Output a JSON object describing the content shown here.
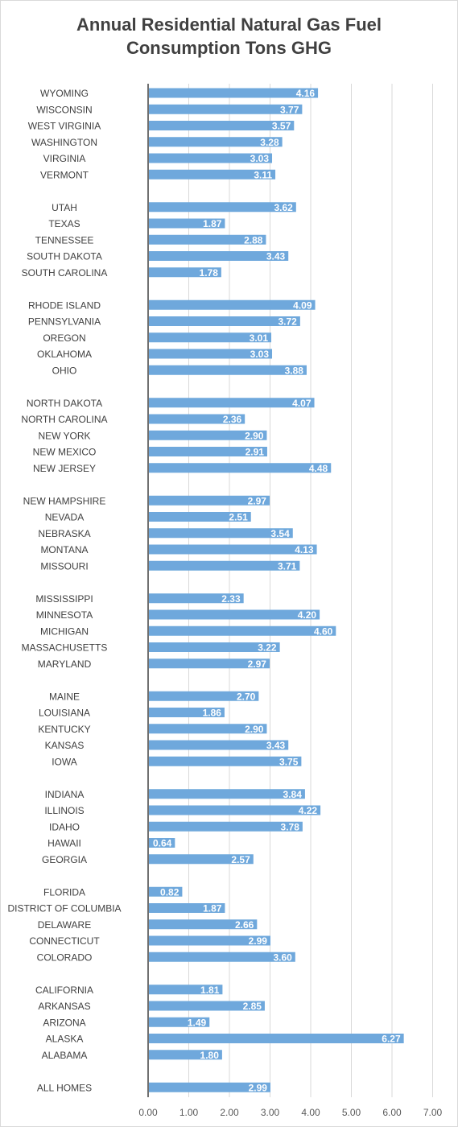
{
  "chart_data": {
    "type": "bar",
    "orientation": "horizontal",
    "title_lines": [
      "Annual Residential Natural Gas Fuel",
      "Consumption Tons GHG"
    ],
    "xlim": [
      0,
      7
    ],
    "x_ticks": [
      "0.00",
      "1.00",
      "2.00",
      "3.00",
      "4.00",
      "5.00",
      "6.00",
      "7.00"
    ],
    "grid": "vertical",
    "legend": "none",
    "bar_color": "#6fa8dc",
    "label_color": "#ffffff",
    "groups": [
      {
        "items": [
          {
            "label": "WYOMING",
            "value": 4.16,
            "display": "4.16"
          },
          {
            "label": "WISCONSIN",
            "value": 3.77,
            "display": "3.77"
          },
          {
            "label": "WEST VIRGINIA",
            "value": 3.57,
            "display": "3.57"
          },
          {
            "label": "WASHINGTON",
            "value": 3.28,
            "display": "3.28"
          },
          {
            "label": "VIRGINIA",
            "value": 3.03,
            "display": "3.03"
          },
          {
            "label": "VERMONT",
            "value": 3.11,
            "display": "3.11"
          }
        ]
      },
      {
        "items": [
          {
            "label": "UTAH",
            "value": 3.62,
            "display": "3.62"
          },
          {
            "label": "TEXAS",
            "value": 1.87,
            "display": "1.87"
          },
          {
            "label": "TENNESSEE",
            "value": 2.88,
            "display": "2.88"
          },
          {
            "label": "SOUTH DAKOTA",
            "value": 3.43,
            "display": "3.43"
          },
          {
            "label": "SOUTH CAROLINA",
            "value": 1.78,
            "display": "1.78"
          }
        ]
      },
      {
        "items": [
          {
            "label": "RHODE ISLAND",
            "value": 4.09,
            "display": "4.09"
          },
          {
            "label": "PENNSYLVANIA",
            "value": 3.72,
            "display": "3.72"
          },
          {
            "label": "OREGON",
            "value": 3.01,
            "display": "3.01"
          },
          {
            "label": "OKLAHOMA",
            "value": 3.03,
            "display": "3.03"
          },
          {
            "label": "OHIO",
            "value": 3.88,
            "display": "3.88"
          }
        ]
      },
      {
        "items": [
          {
            "label": "NORTH DAKOTA",
            "value": 4.07,
            "display": "4.07"
          },
          {
            "label": "NORTH CAROLINA",
            "value": 2.36,
            "display": "2.36"
          },
          {
            "label": "NEW YORK",
            "value": 2.9,
            "display": "2.90"
          },
          {
            "label": "NEW MEXICO",
            "value": 2.91,
            "display": "2.91"
          },
          {
            "label": "NEW JERSEY",
            "value": 4.48,
            "display": "4.48"
          }
        ]
      },
      {
        "items": [
          {
            "label": "NEW HAMPSHIRE",
            "value": 2.97,
            "display": "2.97"
          },
          {
            "label": "NEVADA",
            "value": 2.51,
            "display": "2.51"
          },
          {
            "label": "NEBRASKA",
            "value": 3.54,
            "display": "3.54"
          },
          {
            "label": "MONTANA",
            "value": 4.13,
            "display": "4.13"
          },
          {
            "label": "MISSOURI",
            "value": 3.71,
            "display": "3.71"
          }
        ]
      },
      {
        "items": [
          {
            "label": "MISSISSIPPI",
            "value": 2.33,
            "display": "2.33"
          },
          {
            "label": "MINNESOTA",
            "value": 4.2,
            "display": "4.20"
          },
          {
            "label": "MICHIGAN",
            "value": 4.6,
            "display": "4.60"
          },
          {
            "label": "MASSACHUSETTS",
            "value": 3.22,
            "display": "3.22"
          },
          {
            "label": "MARYLAND",
            "value": 2.97,
            "display": "2.97"
          }
        ]
      },
      {
        "items": [
          {
            "label": "MAINE",
            "value": 2.7,
            "display": "2.70"
          },
          {
            "label": "LOUISIANA",
            "value": 1.86,
            "display": "1.86"
          },
          {
            "label": "KENTUCKY",
            "value": 2.9,
            "display": "2.90"
          },
          {
            "label": "KANSAS",
            "value": 3.43,
            "display": "3.43"
          },
          {
            "label": "IOWA",
            "value": 3.75,
            "display": "3.75"
          }
        ]
      },
      {
        "items": [
          {
            "label": "INDIANA",
            "value": 3.84,
            "display": "3.84"
          },
          {
            "label": "ILLINOIS",
            "value": 4.22,
            "display": "4.22"
          },
          {
            "label": "IDAHO",
            "value": 3.78,
            "display": "3.78"
          },
          {
            "label": "HAWAII",
            "value": 0.64,
            "display": "0.64"
          },
          {
            "label": "GEORGIA",
            "value": 2.57,
            "display": "2.57"
          }
        ]
      },
      {
        "items": [
          {
            "label": "FLORIDA",
            "value": 0.82,
            "display": "0.82"
          },
          {
            "label": "DISTRICT OF COLUMBIA",
            "value": 1.87,
            "display": "1.87"
          },
          {
            "label": "DELAWARE",
            "value": 2.66,
            "display": "2.66"
          },
          {
            "label": "CONNECTICUT",
            "value": 2.99,
            "display": "2.99"
          },
          {
            "label": "COLORADO",
            "value": 3.6,
            "display": "3.60"
          }
        ]
      },
      {
        "items": [
          {
            "label": "CALIFORNIA",
            "value": 1.81,
            "display": "1.81"
          },
          {
            "label": "ARKANSAS",
            "value": 2.85,
            "display": "2.85"
          },
          {
            "label": "ARIZONA",
            "value": 1.49,
            "display": "1.49"
          },
          {
            "label": "ALASKA",
            "value": 6.27,
            "display": "6.27"
          },
          {
            "label": "ALABAMA",
            "value": 1.8,
            "display": "1.80"
          }
        ]
      },
      {
        "items": [
          {
            "label": "ALL HOMES",
            "value": 2.99,
            "display": "2.99"
          }
        ]
      }
    ]
  }
}
